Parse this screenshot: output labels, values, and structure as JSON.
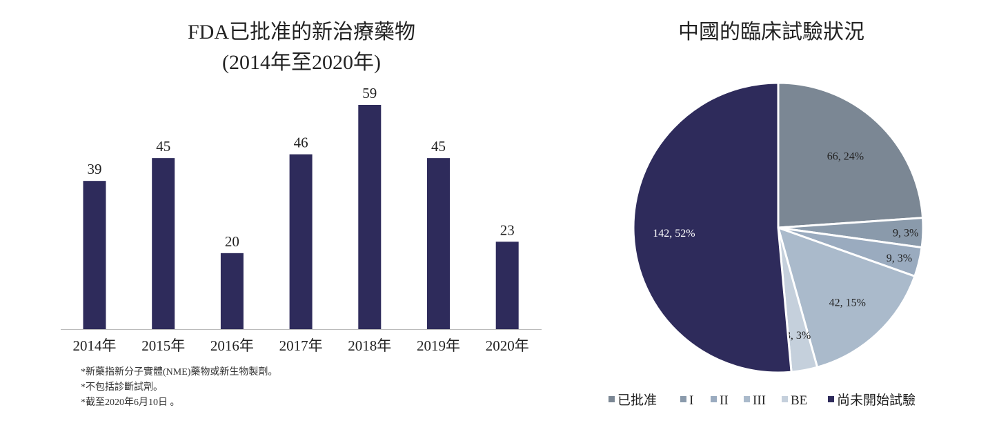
{
  "chart_data": [
    {
      "type": "bar",
      "title": "FDA已批准的新治療藥物",
      "subtitle": "(2014年至2020年)",
      "categories": [
        "2014年",
        "2015年",
        "2016年",
        "2017年",
        "2018年",
        "2019年",
        "2020年"
      ],
      "values": [
        39,
        45,
        20,
        46,
        59,
        45,
        23
      ],
      "color": "#2e2b5b",
      "ylim": [
        0,
        59
      ],
      "grid": false,
      "notes": [
        "*新藥指新分子實體(NME)藥物或新生物製劑。",
        "*不包括診斷試劑。",
        "*截至2020年6月10日 。"
      ]
    },
    {
      "type": "pie",
      "title": "中國的臨床試驗狀況",
      "legend_position": "bottom",
      "slices": [
        {
          "name": "已批准",
          "value": 66,
          "label": "66, 24%",
          "color": "#7b8794"
        },
        {
          "name": "I",
          "value": 9,
          "label": "9, 3%",
          "color": "#8a9aab"
        },
        {
          "name": "II",
          "value": 9,
          "label": "9, 3%",
          "color": "#9aabbf"
        },
        {
          "name": "III",
          "value": 42,
          "label": "42, 15%",
          "color": "#aabacb"
        },
        {
          "name": "BE",
          "value": 8,
          "label": "8, 3%",
          "color": "#c5d0dc"
        },
        {
          "name": "尚未開始試驗",
          "value": 142,
          "label": "142, 52%",
          "color": "#2e2b5b"
        }
      ]
    }
  ]
}
